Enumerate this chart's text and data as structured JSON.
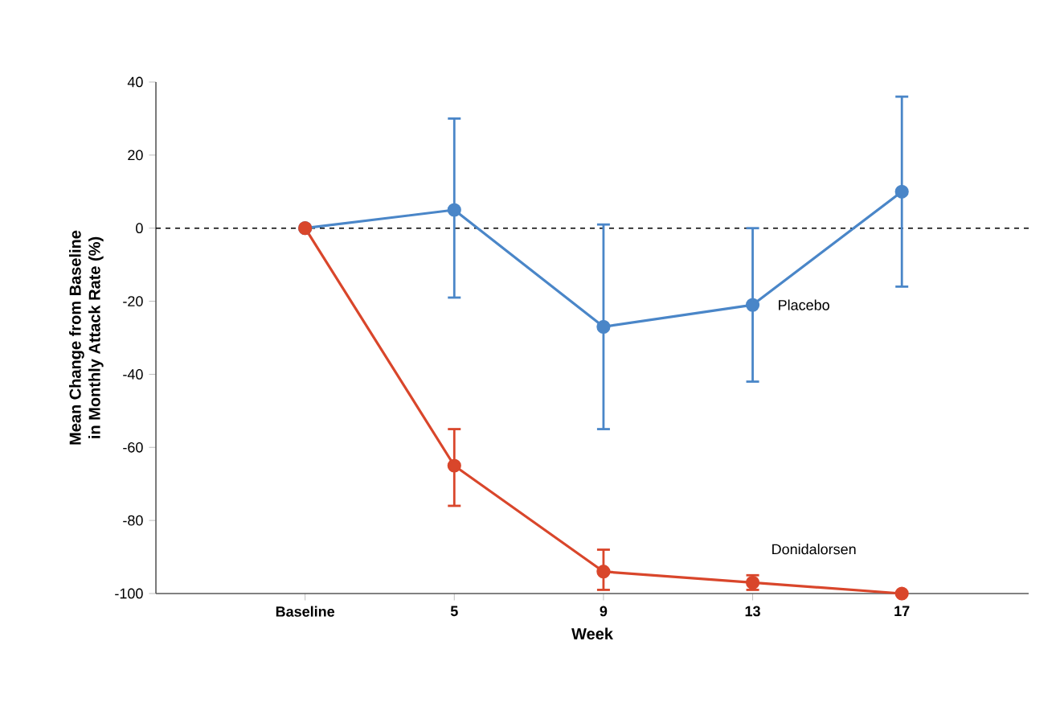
{
  "chart_data": {
    "type": "line",
    "xlabel": "Week",
    "ylabel": "Mean Change from Baseline\nin Monthly Attack Rate (%)",
    "categories": [
      "Baseline",
      "5",
      "9",
      "13",
      "17"
    ],
    "series": [
      {
        "name": "Placebo",
        "color": "#4a86c8",
        "values": [
          0,
          5,
          -27,
          -21,
          10
        ],
        "errors": [
          null,
          [
            -19,
            30
          ],
          [
            -55,
            1
          ],
          [
            -42,
            0
          ],
          [
            -16,
            36
          ]
        ]
      },
      {
        "name": "Donidalorsen",
        "color": "#d9462b",
        "values": [
          0,
          -65,
          -94,
          -97,
          -100
        ],
        "errors": [
          null,
          [
            -76,
            -55
          ],
          [
            -99,
            -88
          ],
          [
            -99,
            -95
          ],
          null
        ]
      }
    ],
    "ylim": [
      -100,
      40
    ],
    "yticks": [
      -100,
      -80,
      -60,
      -40,
      -20,
      0,
      20,
      40
    ],
    "ref_lines": [
      {
        "axis": "y",
        "value": 0,
        "line_style": "dashed",
        "color": "#000000"
      }
    ],
    "marker": "circle",
    "line_style": "solid",
    "grid": false
  }
}
